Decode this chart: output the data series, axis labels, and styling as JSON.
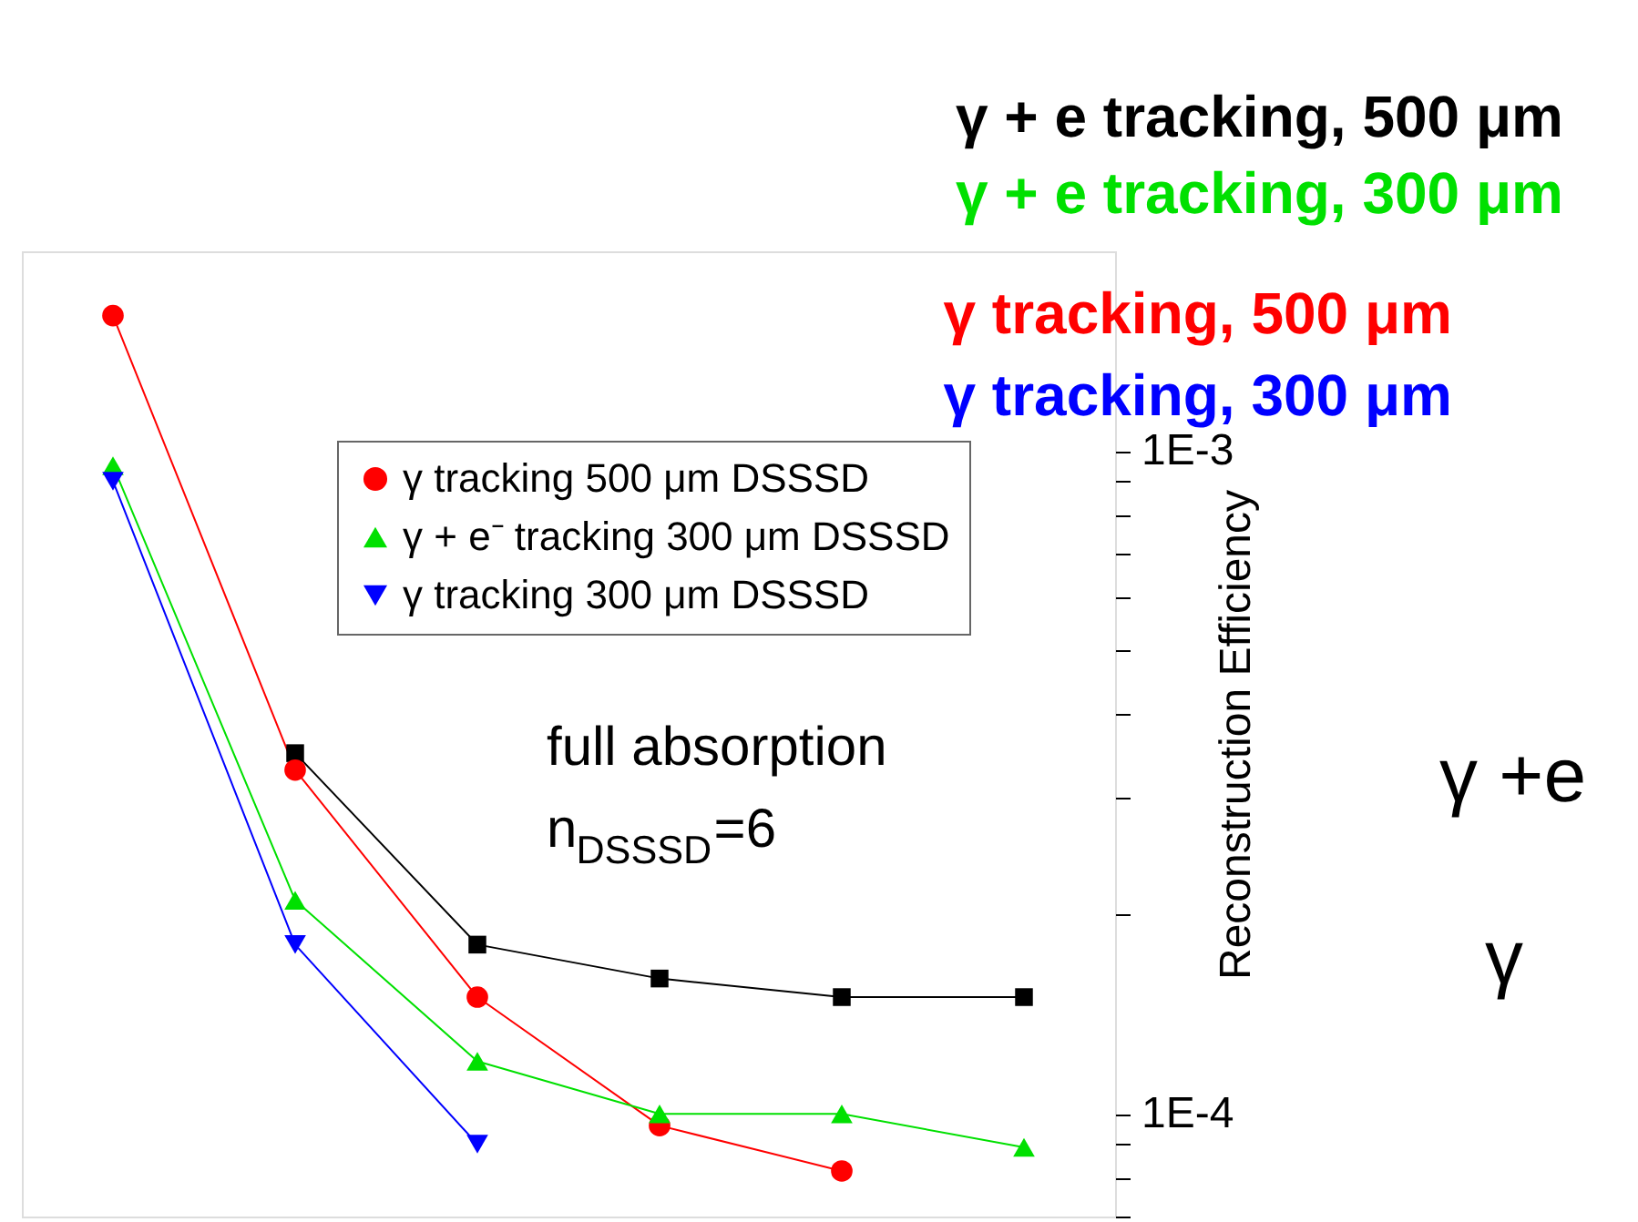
{
  "chart_data": {
    "type": "line",
    "ylabel": "Reconstruction Efficiency",
    "categories": [
      null,
      null,
      null,
      null,
      null,
      null
    ],
    "series": [
      {
        "color": "#000000",
        "marker": "square",
        "values": [
          null,
          0.00035,
          0.00018,
          0.00016,
          0.00015,
          0.00015
        ]
      },
      {
        "name": "γ  tracking 500 μm DSSSD",
        "color": "#ff0000",
        "marker": "circle",
        "values": [
          0.0016,
          0.00033,
          0.00015,
          9.6e-05,
          8.2e-05,
          null
        ]
      },
      {
        "name": "γ + e⁻ tracking 300 μm DSSSD",
        "color": "#00e000",
        "marker": "triangle",
        "values": [
          0.00095,
          0.00021,
          0.00012,
          0.0001,
          0.0001,
          8.9e-05
        ]
      },
      {
        "name": "γ  tracking 300 μm DSSSD",
        "color": "#0000ff",
        "marker": "triangle-down",
        "values": [
          0.0009,
          0.00018,
          9e-05,
          null,
          null,
          null
        ]
      }
    ],
    "log": "y",
    "ylim": [
      7e-05,
      0.002
    ],
    "yticks": [
      {
        "value": 0.001,
        "label": "1E-3"
      },
      {
        "value": 0.0009,
        "label": null
      },
      {
        "value": 0.0008,
        "label": null
      },
      {
        "value": 0.0007,
        "label": null
      },
      {
        "value": 0.0006,
        "label": null
      },
      {
        "value": 0.0005,
        "label": null
      },
      {
        "value": 0.0004,
        "label": null
      },
      {
        "value": 0.0003,
        "label": null
      },
      {
        "value": 0.0002,
        "label": null
      },
      {
        "value": 0.0001,
        "label": "1E-4"
      },
      {
        "value": 9e-05,
        "label": null
      },
      {
        "value": 8e-05,
        "label": null
      },
      {
        "value": 7e-05,
        "label": null
      }
    ],
    "tick_labels": "y",
    "legend": "top right",
    "annotations": [
      "γ + e tracking, 500 μm",
      "γ tracking, 500 μm",
      "γ + e tracking, 300 μm",
      "γ tracking, 300 μm",
      "full absorption",
      "n$_{DSSSD}$=6",
      "γ +e",
      "γ"
    ]
  }
}
